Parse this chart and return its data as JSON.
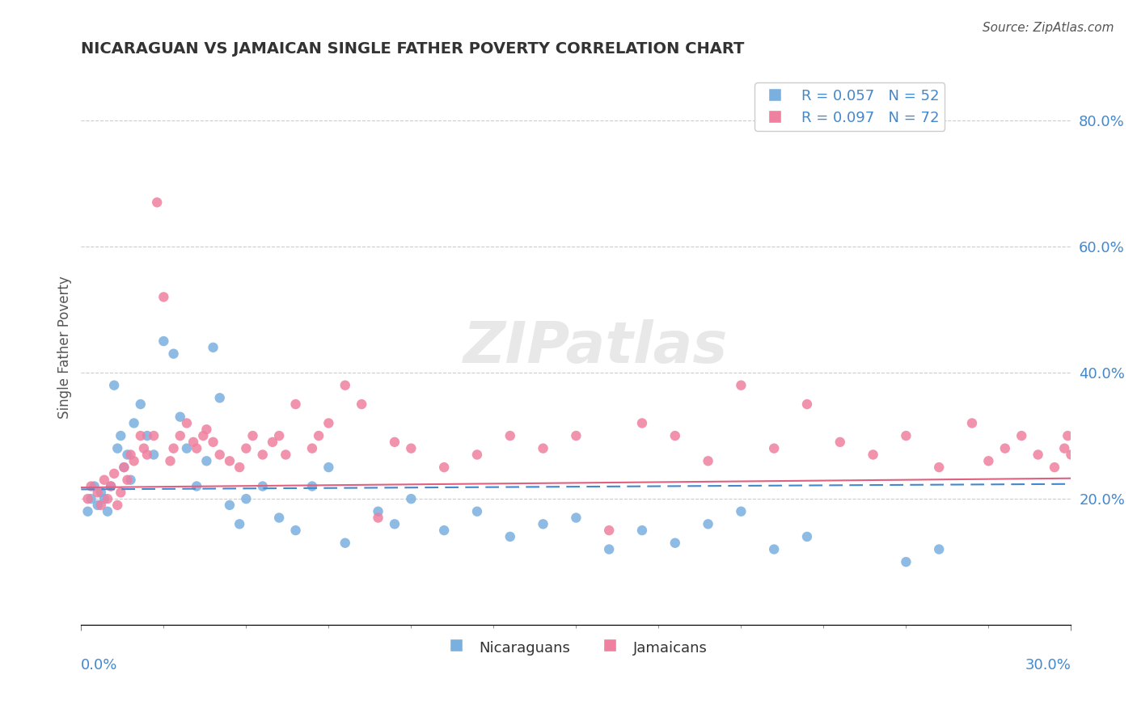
{
  "title": "NICARAGUAN VS JAMAICAN SINGLE FATHER POVERTY CORRELATION CHART",
  "source": "Source: ZipAtlas.com",
  "ylabel": "Single Father Poverty",
  "xmin": 0.0,
  "xmax": 0.3,
  "ymin": 0.0,
  "ymax": 0.88,
  "right_yticks": [
    0.2,
    0.4,
    0.6,
    0.8
  ],
  "right_yticklabels": [
    "20.0%",
    "40.0%",
    "60.0%",
    "80.0%"
  ],
  "watermark": "ZIPatlas",
  "legend_entries": [
    {
      "label": "R = 0.057   N = 52",
      "color": "#a8c8f0"
    },
    {
      "label": "R = 0.097   N = 72",
      "color": "#f0a8b8"
    }
  ],
  "nicaraguan_color": "#7ab0e0",
  "jamaican_color": "#f080a0",
  "background_color": "#ffffff",
  "grid_color": "#cccccc",
  "title_color": "#333333",
  "axis_label_color": "#4488cc",
  "nicaraguan_x": [
    0.002,
    0.003,
    0.004,
    0.005,
    0.006,
    0.007,
    0.008,
    0.009,
    0.01,
    0.011,
    0.012,
    0.013,
    0.014,
    0.015,
    0.016,
    0.018,
    0.02,
    0.022,
    0.025,
    0.028,
    0.03,
    0.032,
    0.035,
    0.038,
    0.04,
    0.042,
    0.045,
    0.048,
    0.05,
    0.055,
    0.06,
    0.065,
    0.07,
    0.075,
    0.08,
    0.09,
    0.095,
    0.1,
    0.11,
    0.12,
    0.13,
    0.14,
    0.15,
    0.16,
    0.17,
    0.18,
    0.19,
    0.2,
    0.21,
    0.22,
    0.25,
    0.26
  ],
  "nicaraguan_y": [
    0.18,
    0.2,
    0.22,
    0.19,
    0.21,
    0.2,
    0.18,
    0.22,
    0.38,
    0.28,
    0.3,
    0.25,
    0.27,
    0.23,
    0.32,
    0.35,
    0.3,
    0.27,
    0.45,
    0.43,
    0.33,
    0.28,
    0.22,
    0.26,
    0.44,
    0.36,
    0.19,
    0.16,
    0.2,
    0.22,
    0.17,
    0.15,
    0.22,
    0.25,
    0.13,
    0.18,
    0.16,
    0.2,
    0.15,
    0.18,
    0.14,
    0.16,
    0.17,
    0.12,
    0.15,
    0.13,
    0.16,
    0.18,
    0.12,
    0.14,
    0.1,
    0.12
  ],
  "jamaican_x": [
    0.002,
    0.003,
    0.005,
    0.006,
    0.007,
    0.008,
    0.009,
    0.01,
    0.011,
    0.012,
    0.013,
    0.014,
    0.015,
    0.016,
    0.018,
    0.019,
    0.02,
    0.022,
    0.023,
    0.025,
    0.027,
    0.028,
    0.03,
    0.032,
    0.034,
    0.035,
    0.037,
    0.038,
    0.04,
    0.042,
    0.045,
    0.048,
    0.05,
    0.052,
    0.055,
    0.058,
    0.06,
    0.062,
    0.065,
    0.07,
    0.072,
    0.075,
    0.08,
    0.085,
    0.09,
    0.095,
    0.1,
    0.11,
    0.12,
    0.13,
    0.14,
    0.15,
    0.16,
    0.17,
    0.18,
    0.19,
    0.2,
    0.21,
    0.22,
    0.23,
    0.24,
    0.25,
    0.26,
    0.27,
    0.275,
    0.28,
    0.285,
    0.29,
    0.295,
    0.298,
    0.299,
    0.3
  ],
  "jamaican_y": [
    0.2,
    0.22,
    0.21,
    0.19,
    0.23,
    0.2,
    0.22,
    0.24,
    0.19,
    0.21,
    0.25,
    0.23,
    0.27,
    0.26,
    0.3,
    0.28,
    0.27,
    0.3,
    0.67,
    0.52,
    0.26,
    0.28,
    0.3,
    0.32,
    0.29,
    0.28,
    0.3,
    0.31,
    0.29,
    0.27,
    0.26,
    0.25,
    0.28,
    0.3,
    0.27,
    0.29,
    0.3,
    0.27,
    0.35,
    0.28,
    0.3,
    0.32,
    0.38,
    0.35,
    0.17,
    0.29,
    0.28,
    0.25,
    0.27,
    0.3,
    0.28,
    0.3,
    0.15,
    0.32,
    0.3,
    0.26,
    0.38,
    0.28,
    0.35,
    0.29,
    0.27,
    0.3,
    0.25,
    0.32,
    0.26,
    0.28,
    0.3,
    0.27,
    0.25,
    0.28,
    0.3,
    0.27
  ]
}
